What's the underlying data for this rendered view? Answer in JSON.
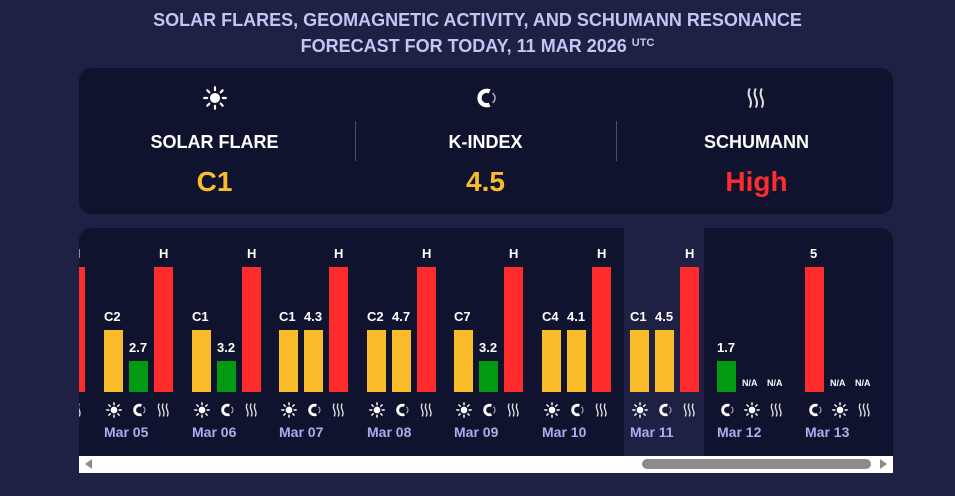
{
  "title": {
    "line1": "SOLAR FLARES, GEOMAGNETIC ACTIVITY, AND SCHUMANN RESONANCE",
    "line2": "FORECAST FOR TODAY, 11 MAR 2026",
    "tz": "UTC"
  },
  "colors": {
    "low": "#019a12",
    "moderate": "#fbbc2c",
    "high": "#fe2c2c",
    "background": "#1e2044",
    "panel": "#10132e",
    "date": "#a9aef0"
  },
  "today": [
    {
      "icon": "sun-icon",
      "label": "SOLAR FLARE",
      "value": "C1",
      "color": "#fbbc2c"
    },
    {
      "icon": "magnet-icon",
      "label": "K-INDEX",
      "value": "4.5",
      "color": "#fbbc2c"
    },
    {
      "icon": "waves-icon",
      "label": "SCHUMANN",
      "value": "High",
      "color": "#fe2c2c"
    }
  ],
  "days": [
    {
      "date": "",
      "bars": [
        {
          "icon": "sun-icon",
          "value": "",
          "level": "moderate"
        },
        {
          "icon": "magnet-icon",
          "value": "",
          "level": "moderate"
        },
        {
          "icon": "waves-icon",
          "value": "H",
          "level": "high"
        }
      ]
    },
    {
      "date": "Mar 05",
      "bars": [
        {
          "icon": "sun-icon",
          "value": "C2",
          "level": "moderate"
        },
        {
          "icon": "magnet-icon",
          "value": "2.7",
          "level": "low"
        },
        {
          "icon": "waves-icon",
          "value": "H",
          "level": "high"
        }
      ]
    },
    {
      "date": "Mar 06",
      "bars": [
        {
          "icon": "sun-icon",
          "value": "C1",
          "level": "moderate"
        },
        {
          "icon": "magnet-icon",
          "value": "3.2",
          "level": "low"
        },
        {
          "icon": "waves-icon",
          "value": "H",
          "level": "high"
        }
      ]
    },
    {
      "date": "Mar 07",
      "bars": [
        {
          "icon": "sun-icon",
          "value": "C1",
          "level": "moderate"
        },
        {
          "icon": "magnet-icon",
          "value": "4.3",
          "level": "moderate"
        },
        {
          "icon": "waves-icon",
          "value": "H",
          "level": "high"
        }
      ]
    },
    {
      "date": "Mar 08",
      "bars": [
        {
          "icon": "sun-icon",
          "value": "C2",
          "level": "moderate"
        },
        {
          "icon": "magnet-icon",
          "value": "4.7",
          "level": "moderate"
        },
        {
          "icon": "waves-icon",
          "value": "H",
          "level": "high"
        }
      ]
    },
    {
      "date": "Mar 09",
      "bars": [
        {
          "icon": "sun-icon",
          "value": "C7",
          "level": "moderate"
        },
        {
          "icon": "magnet-icon",
          "value": "3.2",
          "level": "low"
        },
        {
          "icon": "waves-icon",
          "value": "H",
          "level": "high"
        }
      ]
    },
    {
      "date": "Mar 10",
      "bars": [
        {
          "icon": "sun-icon",
          "value": "C4",
          "level": "moderate"
        },
        {
          "icon": "magnet-icon",
          "value": "4.1",
          "level": "moderate"
        },
        {
          "icon": "waves-icon",
          "value": "H",
          "level": "high"
        }
      ]
    },
    {
      "date": "Mar 11",
      "today": true,
      "bars": [
        {
          "icon": "sun-icon",
          "value": "C1",
          "level": "moderate"
        },
        {
          "icon": "magnet-icon",
          "value": "4.5",
          "level": "moderate"
        },
        {
          "icon": "waves-icon",
          "value": "H",
          "level": "high"
        }
      ]
    },
    {
      "date": "Mar 12",
      "bars": [
        {
          "icon": "magnet-icon",
          "value": "1.7",
          "level": "low"
        },
        {
          "icon": "sun-icon",
          "value": "N/A",
          "level": "none"
        },
        {
          "icon": "waves-icon",
          "value": "N/A",
          "level": "none"
        }
      ]
    },
    {
      "date": "Mar 13",
      "bars": [
        {
          "icon": "magnet-icon",
          "value": "5",
          "level": "high"
        },
        {
          "icon": "sun-icon",
          "value": "N/A",
          "level": "none"
        },
        {
          "icon": "waves-icon",
          "value": "N/A",
          "level": "none"
        }
      ]
    }
  ],
  "scrollbar": {
    "position_percent": 100
  }
}
